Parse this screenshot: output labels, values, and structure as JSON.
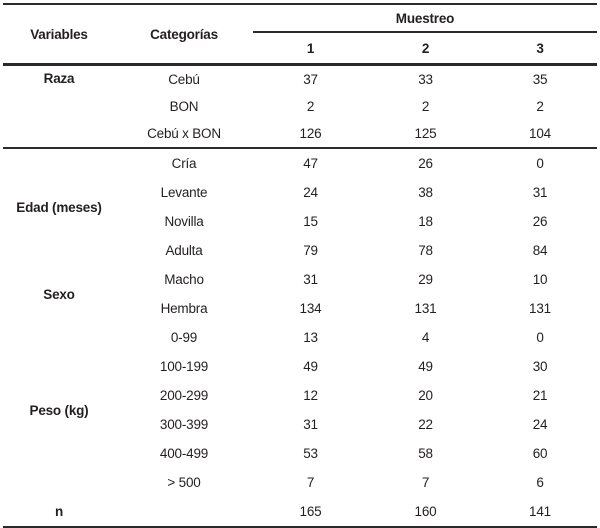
{
  "table": {
    "header": {
      "variables": "Variables",
      "categorias": "Categorías",
      "muestreo": "Muestreo",
      "samples": [
        "1",
        "2",
        "3"
      ]
    },
    "sections": [
      {
        "variable": "Raza",
        "rows": [
          {
            "category": "Cebú",
            "values": [
              "37",
              "33",
              "35"
            ]
          },
          {
            "category": "BON",
            "values": [
              "2",
              "2",
              "2"
            ]
          },
          {
            "category": "Cebú x BON",
            "values": [
              "126",
              "125",
              "104"
            ]
          }
        ]
      },
      {
        "variable": "Edad (meses)",
        "rows": [
          {
            "category": "Cría",
            "values": [
              "47",
              "26",
              "0"
            ]
          },
          {
            "category": "Levante",
            "values": [
              "24",
              "38",
              "31"
            ]
          },
          {
            "category": "Novilla",
            "values": [
              "15",
              "18",
              "26"
            ]
          },
          {
            "category": "Adulta",
            "values": [
              "79",
              "78",
              "84"
            ]
          }
        ]
      },
      {
        "variable": "Sexo",
        "rows": [
          {
            "category": "Macho",
            "values": [
              "31",
              "29",
              "10"
            ]
          },
          {
            "category": "Hembra",
            "values": [
              "134",
              "131",
              "131"
            ]
          }
        ]
      },
      {
        "variable": "Peso (kg)",
        "rows": [
          {
            "category": "0-99",
            "values": [
              "13",
              "4",
              "0"
            ]
          },
          {
            "category": "100-199",
            "values": [
              "49",
              "49",
              "30"
            ]
          },
          {
            "category": "200-299",
            "values": [
              "12",
              "20",
              "21"
            ]
          },
          {
            "category": "300-399",
            "values": [
              "31",
              "22",
              "24"
            ]
          },
          {
            "category": "400-499",
            "values": [
              "53",
              "58",
              "60"
            ]
          },
          {
            "category": "> 500",
            "values": [
              "7",
              "7",
              "6"
            ]
          }
        ]
      },
      {
        "variable": "n",
        "rows": [
          {
            "category": "",
            "values": [
              "165",
              "160",
              "141"
            ]
          }
        ]
      }
    ],
    "colors": {
      "text": "#231f20",
      "rule": "#2b2a29",
      "background": "#ffffff"
    }
  }
}
